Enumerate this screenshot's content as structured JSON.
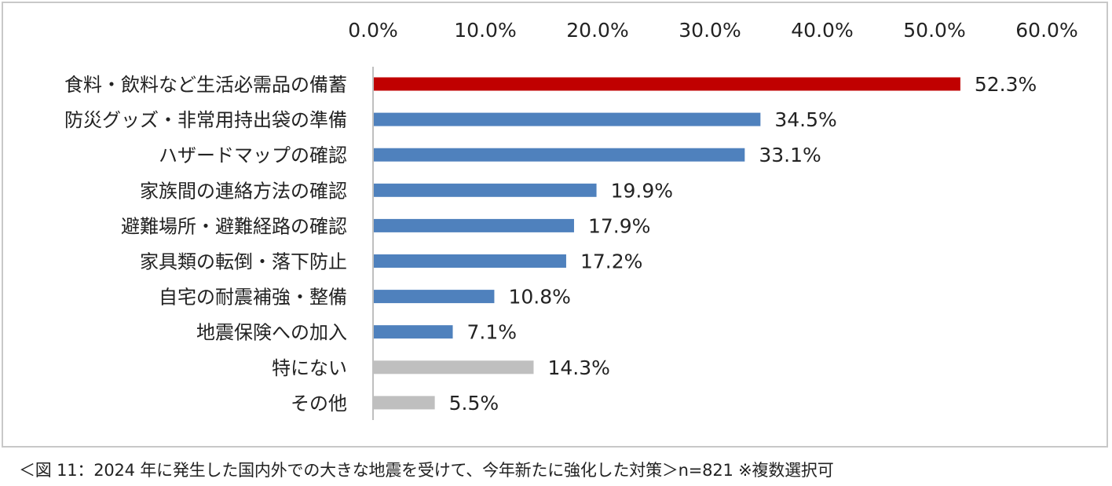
{
  "chart_data": {
    "type": "bar",
    "orientation": "horizontal",
    "categories": [
      "食料・飲料など生活必需品の備蓄",
      "防災グッズ・非常用持出袋の準備",
      "ハザードマップの確認",
      "家族間の連絡方法の確認",
      "避難場所・避難経路の確認",
      "家具類の転倒・落下防止",
      "自宅の耐震補強・整備",
      "地震保険への加入",
      "特にない",
      "その他"
    ],
    "values": [
      52.3,
      34.5,
      33.1,
      19.9,
      17.9,
      17.2,
      10.8,
      7.1,
      14.3,
      5.5
    ],
    "value_labels": [
      "52.3%",
      "34.5%",
      "33.1%",
      "19.9%",
      "17.9%",
      "17.2%",
      "10.8%",
      "7.1%",
      "14.3%",
      "5.5%"
    ],
    "bar_colors": [
      "#c00000",
      "#4f81bd",
      "#4f81bd",
      "#4f81bd",
      "#4f81bd",
      "#4f81bd",
      "#4f81bd",
      "#4f81bd",
      "#bfbfbf",
      "#bfbfbf"
    ],
    "xlim": [
      0,
      60
    ],
    "ticks": [
      0,
      10,
      20,
      30,
      40,
      50,
      60
    ],
    "tick_labels": [
      "0.0%",
      "10.0%",
      "20.0%",
      "30.0%",
      "40.0%",
      "50.0%",
      "60.0%"
    ],
    "axis_position": "top",
    "grid": false
  },
  "caption": "＜図 11：2024 年に発生した国内外での大きな地震を受けて、今年新たに強化した対策＞n=821 ※複数選択可"
}
